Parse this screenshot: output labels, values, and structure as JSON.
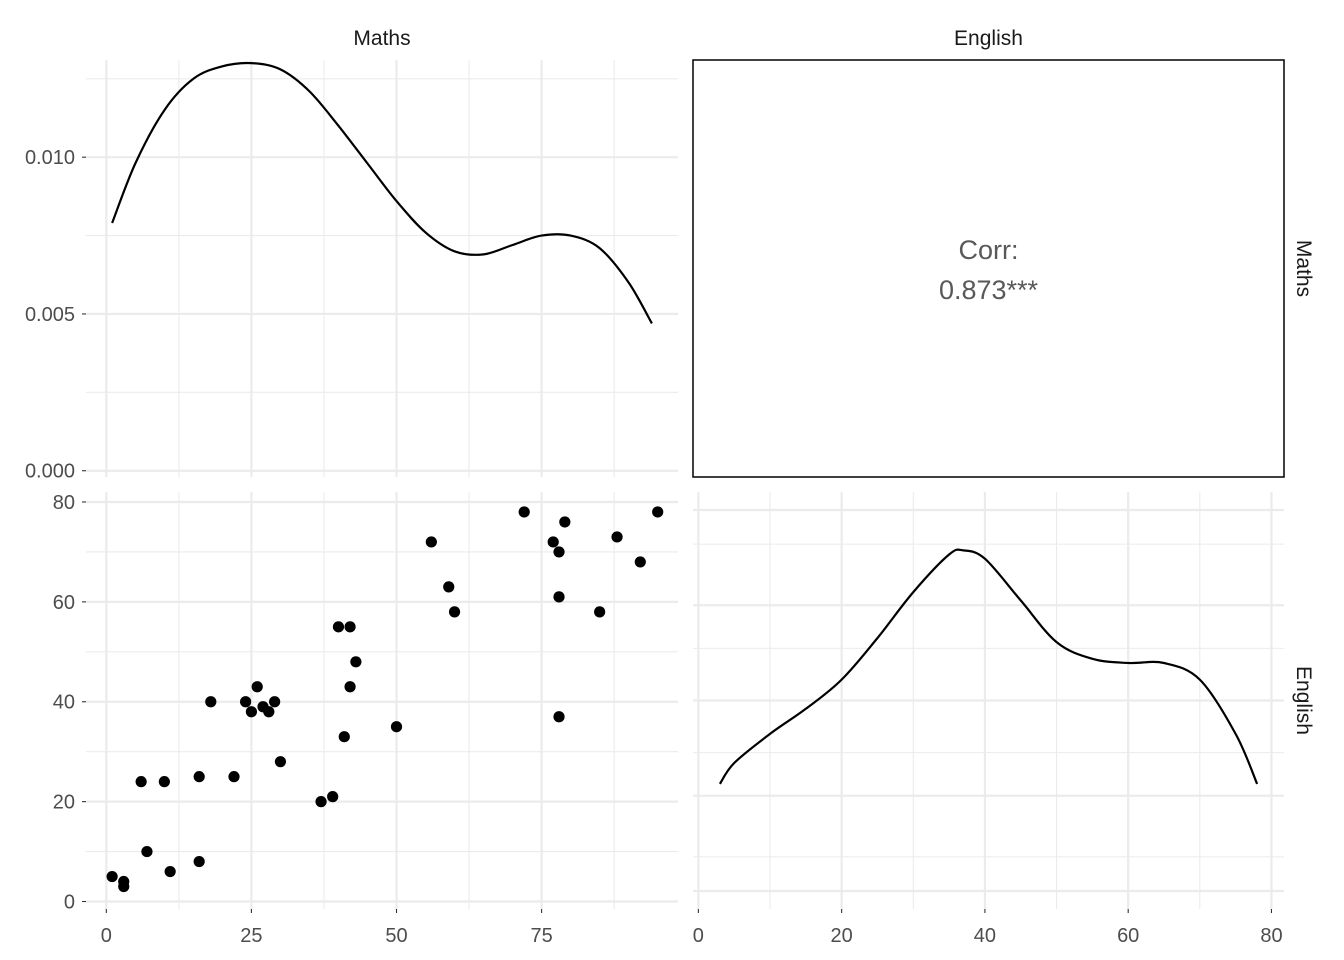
{
  "chart_data": {
    "type": "scatter",
    "title": "",
    "variables": [
      "Maths",
      "English"
    ],
    "column_strips": [
      "Maths",
      "English"
    ],
    "row_strips": [
      "Maths",
      "English"
    ],
    "panels": {
      "maths_density": {
        "type": "line",
        "x_range": [
          1,
          94
        ],
        "xlim": [
          -3.5,
          98.5
        ],
        "ylim": [
          -0.0002,
          0.0131
        ],
        "y_ticks": [
          0.0,
          0.005,
          0.01
        ],
        "y_tick_labels": [
          "0.000",
          "0.005",
          "0.010"
        ],
        "x": [
          1,
          5,
          10,
          15,
          20,
          25,
          30,
          35,
          40,
          45,
          50,
          55,
          60,
          65,
          70,
          75,
          80,
          85,
          90,
          94
        ],
        "y": [
          0.0079,
          0.0098,
          0.0115,
          0.0125,
          0.0129,
          0.013,
          0.0128,
          0.0121,
          0.011,
          0.0098,
          0.0086,
          0.0076,
          0.007,
          0.0069,
          0.0072,
          0.0075,
          0.0075,
          0.0071,
          0.006,
          0.0047
        ]
      },
      "correlation": {
        "label": "Corr:",
        "value": "0.873***"
      },
      "scatter": {
        "type": "scatter",
        "xlim": [
          -3.5,
          98.5
        ],
        "ylim": [
          -1.5,
          82
        ],
        "x_ticks": [
          0,
          25,
          50,
          75
        ],
        "y_ticks": [
          0,
          20,
          40,
          60,
          80
        ],
        "x": [
          1,
          3,
          3,
          6,
          7,
          10,
          11,
          16,
          16,
          18,
          22,
          24,
          25,
          26,
          27,
          28,
          29,
          30,
          37,
          39,
          40,
          41,
          42,
          42,
          43,
          50,
          56,
          59,
          60,
          72,
          77,
          78,
          78,
          78,
          79,
          85,
          88,
          92,
          95
        ],
        "y": [
          5,
          4,
          3,
          24,
          10,
          24,
          6,
          25,
          8,
          40,
          25,
          40,
          38,
          43,
          39,
          38,
          40,
          28,
          20,
          21,
          55,
          33,
          55,
          43,
          48,
          35,
          72,
          63,
          58,
          78,
          72,
          70,
          61,
          37,
          76,
          58,
          73,
          68,
          78
        ]
      },
      "english_density": {
        "type": "line",
        "x_range": [
          3,
          78
        ],
        "xlim": [
          -0.75,
          81.75
        ],
        "x_ticks": [
          0,
          20,
          40,
          60,
          80
        ],
        "x": [
          3,
          5,
          10,
          15,
          20,
          25,
          30,
          35,
          37,
          40,
          45,
          50,
          55,
          60,
          65,
          70,
          75,
          78
        ],
        "y": [
          0.3,
          0.35,
          0.42,
          0.48,
          0.55,
          0.65,
          0.76,
          0.85,
          0.86,
          0.84,
          0.74,
          0.64,
          0.6,
          0.59,
          0.59,
          0.55,
          0.42,
          0.3
        ]
      }
    }
  }
}
